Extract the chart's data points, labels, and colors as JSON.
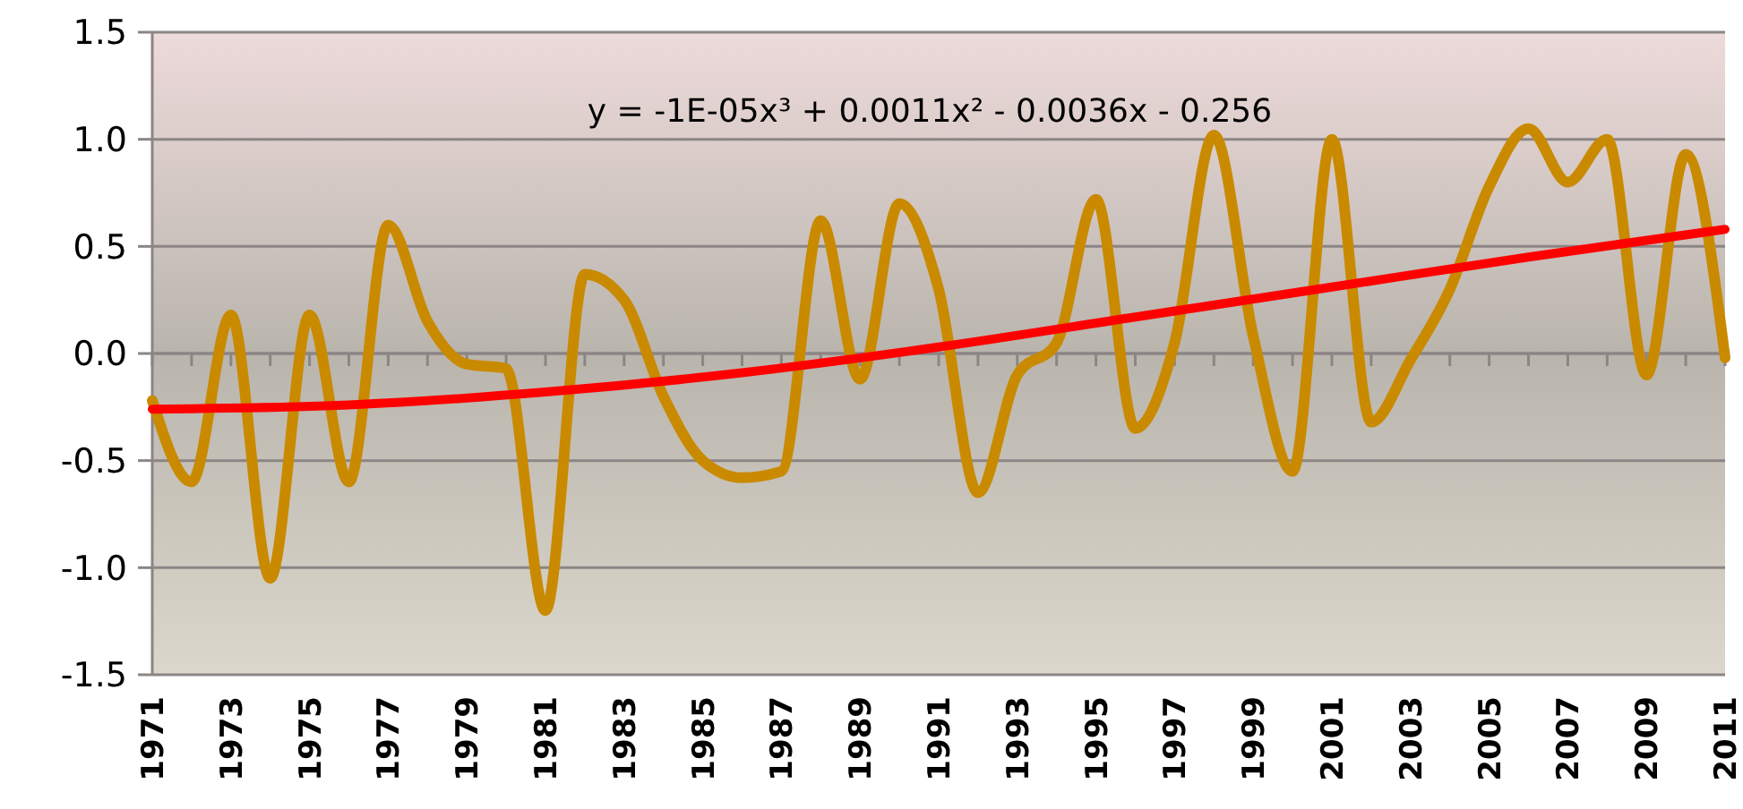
{
  "chart_data": {
    "type": "line",
    "xlim": [
      1971,
      2011
    ],
    "xticks": [
      1971,
      {
        "value": 1972,
        "label": null
      },
      1973,
      {
        "value": 1974,
        "label": null
      },
      1975,
      {
        "value": 1976,
        "label": null
      },
      1977,
      {
        "value": 1978,
        "label": null
      },
      1979,
      {
        "value": 1980,
        "label": null
      },
      1981,
      {
        "value": 1982,
        "label": null
      },
      1983,
      {
        "value": 1984,
        "label": null
      },
      1985,
      {
        "value": 1986,
        "label": null
      },
      1987,
      {
        "value": 1988,
        "label": null
      },
      1989,
      {
        "value": 1990,
        "label": null
      },
      1991,
      {
        "value": 1992,
        "label": null
      },
      1993,
      {
        "value": 1994,
        "label": null
      },
      1995,
      {
        "value": 1996,
        "label": null
      },
      1997,
      {
        "value": 1998,
        "label": null
      },
      1999,
      {
        "value": 2000,
        "label": null
      },
      2001,
      {
        "value": 2002,
        "label": null
      },
      2003,
      {
        "value": 2004,
        "label": null
      },
      2005,
      {
        "value": 2006,
        "label": null
      },
      2007,
      {
        "value": 2008,
        "label": null
      },
      2009,
      {
        "value": 2010,
        "label": null
      },
      2011
    ],
    "ylim": [
      -1.5,
      1.5
    ],
    "yticks": [
      {
        "value": -1.5,
        "label": "-1.5"
      },
      {
        "value": -1,
        "label": "-1.0"
      },
      {
        "value": -0.5,
        "label": "-0.5"
      },
      {
        "value": 0,
        "label": "0.0"
      },
      {
        "value": 0.5,
        "label": "0.5"
      },
      {
        "value": 1,
        "label": "1.0"
      },
      {
        "value": 1.5,
        "label": "1.5"
      }
    ],
    "grid": "y",
    "line_style": "solid",
    "marker": "none",
    "annotations": [
      "y = -1E-05x³ + 0.0011x² - 0.0036x - 0.256"
    ],
    "series": [
      {
        "color": "#c98a00",
        "x": [
          1971,
          1972,
          1973,
          1974,
          1975,
          1976,
          1977,
          1978,
          1979,
          1980,
          1981,
          1982,
          1983,
          1984,
          1985,
          1986,
          1987,
          1988,
          1989,
          1990,
          1991,
          1992,
          1993,
          1994,
          1995,
          1996,
          1997,
          1998,
          1999,
          2000,
          2001,
          2002,
          2003,
          2004,
          2005,
          2006,
          2007,
          2008,
          2009,
          2010,
          2011
        ],
        "values": [
          -0.22,
          -0.6,
          0.18,
          -1.05,
          0.18,
          -0.6,
          0.6,
          0.15,
          -0.05,
          -0.07,
          -1.2,
          0.37,
          0.25,
          -0.2,
          -0.5,
          -0.58,
          -0.55,
          0.62,
          -0.12,
          0.7,
          0.3,
          -0.65,
          -0.1,
          0.05,
          0.72,
          -0.35,
          0.05,
          1.02,
          0.08,
          -0.55,
          1.0,
          -0.32,
          -0.03,
          0.3,
          0.78,
          1.05,
          0.8,
          1.0,
          -0.1,
          0.93,
          -0.02
        ]
      },
      {
        "color": "#ff0000",
        "x": [
          1971,
          1976,
          1981,
          1986,
          1991,
          1996,
          2001,
          2006,
          2011
        ],
        "values": [
          -0.26,
          -0.24,
          -0.18,
          -0.09,
          0.03,
          0.17,
          0.31,
          0.45,
          0.58
        ]
      }
    ]
  }
}
